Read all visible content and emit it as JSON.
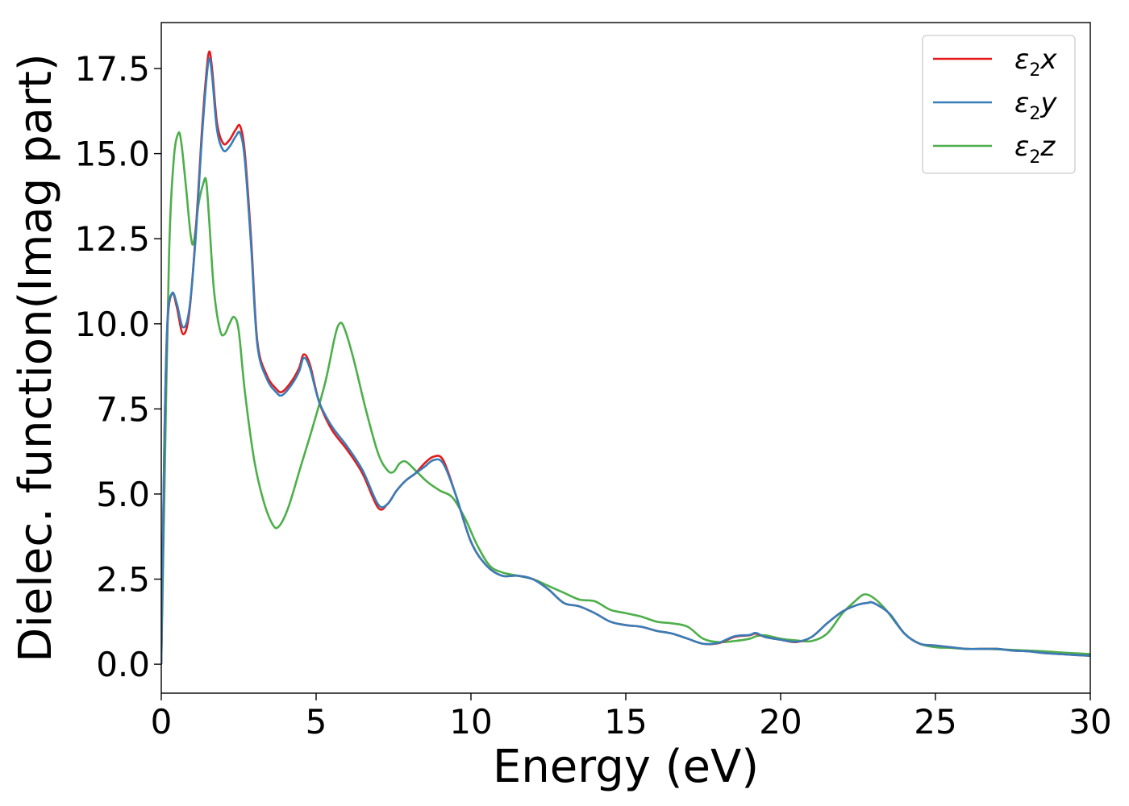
{
  "chart_data": {
    "type": "line",
    "xlabel": "Energy (eV)",
    "ylabel": "Dielec. function(Imag part)",
    "xlim": [
      0,
      30
    ],
    "ylim": [
      -0.85,
      18.85
    ],
    "xticks": [
      "0",
      "5",
      "10",
      "15",
      "20",
      "25",
      "30"
    ],
    "yticks": [
      "0.0",
      "2.5",
      "5.0",
      "7.5",
      "10.0",
      "12.5",
      "15.0",
      "17.5"
    ],
    "grid": false,
    "legend_position": "top-right",
    "series": [
      {
        "name": "ε2x",
        "name_main": "ε",
        "name_sub": "2",
        "name_tail": "x",
        "color": "#e41a1c",
        "x": [
          0,
          0.1,
          0.2,
          0.35,
          0.5,
          0.7,
          0.9,
          1.1,
          1.3,
          1.45,
          1.55,
          1.65,
          1.8,
          2.0,
          2.2,
          2.4,
          2.55,
          2.7,
          2.9,
          3.1,
          3.4,
          3.7,
          3.9,
          4.2,
          4.45,
          4.6,
          4.8,
          5.1,
          5.5,
          6.0,
          6.5,
          7.0,
          7.3,
          7.6,
          7.9,
          8.2,
          8.5,
          8.8,
          9.1,
          9.5,
          10.0,
          10.5,
          11.0,
          11.5,
          12.0,
          12.5,
          13.0,
          13.5,
          14.0,
          14.5,
          15.0,
          15.5,
          16.0,
          16.5,
          17.0,
          17.5,
          18.0,
          18.5,
          19.0,
          19.2,
          19.5,
          20.0,
          20.5,
          21.0,
          21.5,
          22.0,
          22.5,
          22.8,
          23.0,
          23.5,
          24.0,
          24.5,
          25.0,
          25.5,
          26.0,
          26.5,
          27.0,
          27.5,
          28.0,
          28.5,
          29.0,
          29.5,
          30.0
        ],
        "y": [
          0.0,
          6.5,
          10.0,
          10.9,
          10.5,
          9.7,
          10.3,
          12.5,
          15.5,
          17.3,
          18.0,
          17.4,
          15.9,
          15.3,
          15.4,
          15.7,
          15.8,
          15.0,
          12.5,
          9.5,
          8.5,
          8.1,
          8.0,
          8.3,
          8.7,
          9.1,
          8.8,
          7.7,
          6.9,
          6.3,
          5.6,
          4.6,
          4.7,
          5.1,
          5.4,
          5.6,
          5.9,
          6.1,
          6.0,
          5.0,
          3.6,
          2.9,
          2.6,
          2.6,
          2.5,
          2.2,
          1.8,
          1.7,
          1.5,
          1.25,
          1.15,
          1.1,
          0.98,
          0.9,
          0.75,
          0.6,
          0.62,
          0.8,
          0.85,
          0.9,
          0.8,
          0.72,
          0.65,
          0.8,
          1.2,
          1.55,
          1.75,
          1.8,
          1.8,
          1.5,
          0.9,
          0.6,
          0.55,
          0.5,
          0.45,
          0.45,
          0.45,
          0.4,
          0.38,
          0.33,
          0.3,
          0.27,
          0.25
        ]
      },
      {
        "name": "ε2y",
        "name_main": "ε",
        "name_sub": "2",
        "name_tail": "y",
        "color": "#377eb8",
        "x": [
          0,
          0.1,
          0.2,
          0.35,
          0.5,
          0.7,
          0.9,
          1.1,
          1.3,
          1.45,
          1.55,
          1.65,
          1.8,
          2.0,
          2.2,
          2.4,
          2.55,
          2.7,
          2.9,
          3.1,
          3.4,
          3.7,
          3.9,
          4.2,
          4.45,
          4.6,
          4.8,
          5.1,
          5.5,
          6.0,
          6.5,
          7.0,
          7.3,
          7.6,
          7.9,
          8.2,
          8.5,
          8.8,
          9.1,
          9.5,
          10.0,
          10.5,
          11.0,
          11.5,
          12.0,
          12.5,
          13.0,
          13.5,
          14.0,
          14.5,
          15.0,
          15.5,
          16.0,
          16.5,
          17.0,
          17.5,
          18.0,
          18.5,
          19.0,
          19.2,
          19.5,
          20.0,
          20.5,
          21.0,
          21.5,
          22.0,
          22.5,
          22.8,
          23.0,
          23.5,
          24.0,
          24.5,
          25.0,
          25.5,
          26.0,
          26.5,
          27.0,
          27.5,
          28.0,
          28.5,
          29.0,
          29.5,
          30.0
        ],
        "y": [
          0.0,
          6.6,
          10.1,
          10.9,
          10.6,
          9.9,
          10.4,
          12.4,
          15.3,
          17.1,
          17.8,
          17.2,
          15.7,
          15.1,
          15.2,
          15.5,
          15.6,
          14.8,
          12.3,
          9.4,
          8.4,
          8.0,
          7.9,
          8.2,
          8.6,
          9.0,
          8.7,
          7.7,
          7.0,
          6.4,
          5.7,
          4.7,
          4.7,
          5.1,
          5.4,
          5.6,
          5.8,
          6.0,
          5.9,
          5.0,
          3.6,
          2.9,
          2.6,
          2.6,
          2.5,
          2.2,
          1.8,
          1.7,
          1.5,
          1.25,
          1.15,
          1.1,
          0.98,
          0.9,
          0.75,
          0.6,
          0.63,
          0.82,
          0.86,
          0.92,
          0.8,
          0.72,
          0.66,
          0.8,
          1.2,
          1.55,
          1.75,
          1.8,
          1.8,
          1.5,
          0.9,
          0.6,
          0.55,
          0.5,
          0.45,
          0.45,
          0.45,
          0.4,
          0.38,
          0.33,
          0.3,
          0.27,
          0.25
        ]
      },
      {
        "name": "ε2z",
        "name_main": "ε",
        "name_sub": "2",
        "name_tail": "z",
        "color": "#4daf4a",
        "x": [
          0,
          0.1,
          0.25,
          0.4,
          0.55,
          0.65,
          0.8,
          0.95,
          1.05,
          1.2,
          1.35,
          1.45,
          1.55,
          1.7,
          1.9,
          2.05,
          2.2,
          2.35,
          2.5,
          2.7,
          3.0,
          3.3,
          3.6,
          3.8,
          4.1,
          4.5,
          4.9,
          5.3,
          5.6,
          5.75,
          5.9,
          6.2,
          6.6,
          7.0,
          7.3,
          7.5,
          7.7,
          7.9,
          8.2,
          8.6,
          9.0,
          9.4,
          9.8,
          10.2,
          10.6,
          11.0,
          11.5,
          12.0,
          12.5,
          13.0,
          13.5,
          14.0,
          14.5,
          15.0,
          15.5,
          16.0,
          16.5,
          17.0,
          17.5,
          18.0,
          18.5,
          19.0,
          19.2,
          19.5,
          20.0,
          20.5,
          21.0,
          21.5,
          22.0,
          22.4,
          22.7,
          23.0,
          23.4,
          24.0,
          24.5,
          25.0,
          25.5,
          26.0,
          26.5,
          27.0,
          27.5,
          28.0,
          28.5,
          29.0,
          29.5,
          30.0
        ],
        "y": [
          0.0,
          5.0,
          12.0,
          14.8,
          15.6,
          15.3,
          14.0,
          12.6,
          12.4,
          13.5,
          14.1,
          14.2,
          13.0,
          11.0,
          9.8,
          9.7,
          10.0,
          10.2,
          9.8,
          8.0,
          6.0,
          4.8,
          4.1,
          4.05,
          4.6,
          5.8,
          7.0,
          8.3,
          9.6,
          10.0,
          9.9,
          9.0,
          7.5,
          6.2,
          5.7,
          5.65,
          5.9,
          5.95,
          5.7,
          5.35,
          5.1,
          4.9,
          4.3,
          3.5,
          2.9,
          2.7,
          2.6,
          2.5,
          2.3,
          2.1,
          1.9,
          1.85,
          1.6,
          1.5,
          1.4,
          1.25,
          1.2,
          1.1,
          0.75,
          0.65,
          0.68,
          0.75,
          0.82,
          0.85,
          0.75,
          0.7,
          0.68,
          0.9,
          1.5,
          1.85,
          2.05,
          1.95,
          1.6,
          0.9,
          0.6,
          0.5,
          0.48,
          0.45,
          0.45,
          0.44,
          0.42,
          0.4,
          0.38,
          0.35,
          0.32,
          0.3
        ]
      }
    ]
  }
}
